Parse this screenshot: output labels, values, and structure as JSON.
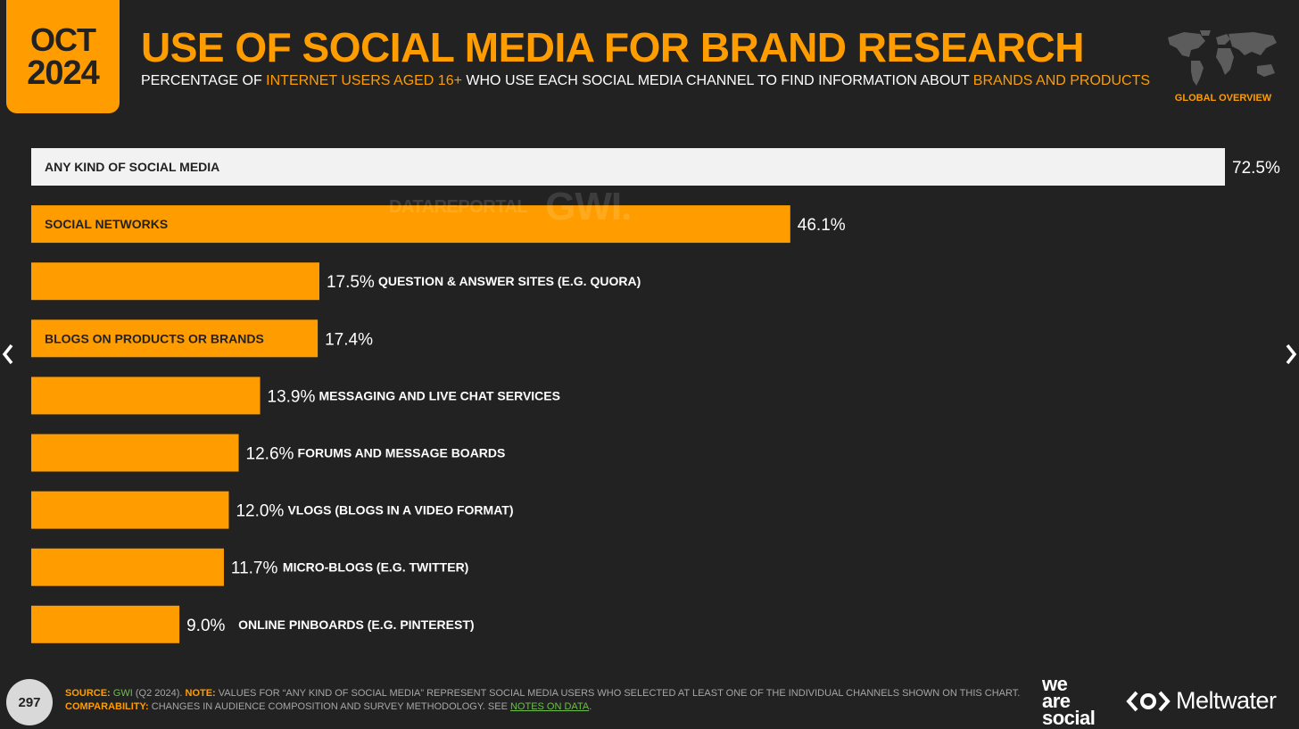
{
  "header": {
    "month": "OCT",
    "year": "2024",
    "title": "USE OF SOCIAL MEDIA FOR BRAND RESEARCH",
    "subtitle_parts": [
      "PERCENTAGE OF ",
      "INTERNET USERS AGED 16+",
      " WHO USE EACH SOCIAL MEDIA CHANNEL TO FIND INFORMATION ABOUT ",
      "BRANDS AND PRODUCTS"
    ],
    "region_label": "GLOBAL OVERVIEW"
  },
  "watermark": {
    "left": "DATAREPORTAL",
    "right": "GWI."
  },
  "chart_data": {
    "type": "bar",
    "orientation": "horizontal",
    "categories": [
      "ANY KIND OF SOCIAL MEDIA",
      "SOCIAL NETWORKS",
      "QUESTION & ANSWER SITES (E.G. QUORA)",
      "BLOGS ON PRODUCTS OR BRANDS",
      "MESSAGING AND LIVE CHAT SERVICES",
      "FORUMS AND MESSAGE BOARDS",
      "VLOGS (BLOGS IN A VIDEO FORMAT)",
      "MICRO-BLOGS (E.G. TWITTER)",
      "ONLINE PINBOARDS (E.G. PINTEREST)"
    ],
    "values": [
      72.5,
      46.1,
      17.5,
      17.4,
      13.9,
      12.6,
      12.0,
      11.7,
      9.0
    ],
    "value_labels": [
      "72.5%",
      "46.1%",
      "17.5%",
      "17.4%",
      "13.9%",
      "12.6%",
      "12.0%",
      "11.7%",
      "9.0%"
    ],
    "label_inside": [
      true,
      true,
      false,
      true,
      false,
      false,
      false,
      false,
      false
    ],
    "highlight_first_bar": true,
    "xlim": [
      0,
      72.5
    ],
    "colors": {
      "bar": "#ff9d00",
      "highlight_bar": "#f2f2f2",
      "background": "#222222"
    }
  },
  "footer": {
    "page_number": "297",
    "source_key": "SOURCE:",
    "source_name": "GWI",
    "source_rest": " (Q2 2024). ",
    "note_key": "NOTE:",
    "note_text": " VALUES FOR “ANY KIND OF SOCIAL MEDIA” REPRESENT SOCIAL MEDIA USERS WHO SELECTED AT LEAST ONE OF THE INDIVIDUAL CHANNELS SHOWN ON THIS CHART.",
    "comparability_key": "COMPARABILITY:",
    "comparability_text": " CHANGES IN AUDIENCE COMPOSITION AND SURVEY METHODOLOGY. SEE ",
    "notes_link": "NOTES ON DATA",
    "period": "."
  },
  "brands": {
    "we": "we",
    "are": "are",
    "social": "social",
    "meltwater": "Meltwater"
  },
  "icons": {
    "prev": "chevron-left-icon",
    "next": "chevron-right-icon",
    "map": "world-map-icon",
    "meltwater": "meltwater-logo-icon"
  }
}
